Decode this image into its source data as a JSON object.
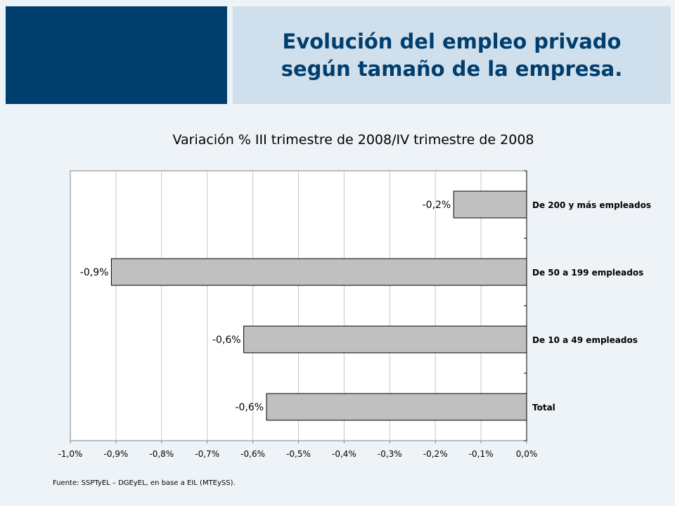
{
  "header": {
    "title_line1": "Evolución del empleo privado",
    "title_line2": "según tamaño de la empresa."
  },
  "chart_data": {
    "type": "bar",
    "orientation": "horizontal",
    "title": "Variación % III trimestre de 2008/IV trimestre de 2008",
    "categories": [
      "De 200 y más empleados",
      "De 50 a 199 empleados",
      "De 10 a 49 empleados",
      "Total"
    ],
    "values": [
      -0.16,
      -0.91,
      -0.62,
      -0.57
    ],
    "data_labels": [
      "-0,2%",
      "-0,9%",
      "-0,6%",
      "-0,6%"
    ],
    "xlim": [
      -1.0,
      0.0
    ],
    "x_tick_labels": [
      "-1,0%",
      "-0,9%",
      "-0,8%",
      "-0,7%",
      "-0,6%",
      "-0,5%",
      "-0,4%",
      "-0,3%",
      "-0,2%",
      "-0,1%",
      "0,0%"
    ],
    "grid": true,
    "bar_color": "#c0c0c0"
  },
  "source": "Fuente: SSPTyEL – DGEyEL, en base a EIL (MTEySS)."
}
